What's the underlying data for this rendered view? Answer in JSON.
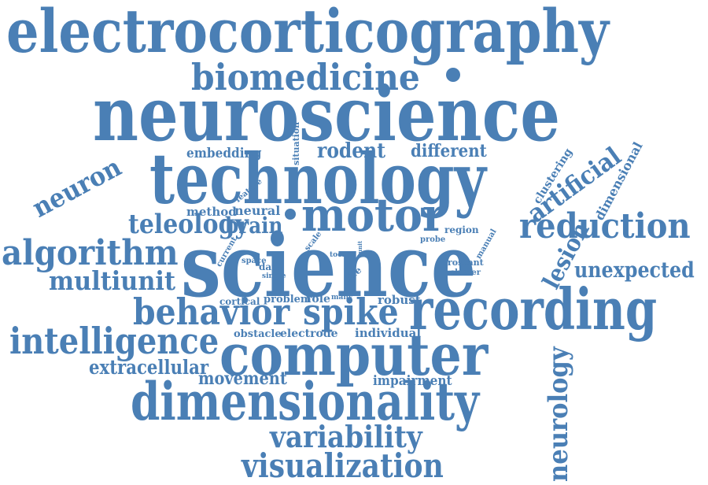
{
  "colors": {
    "word": "#4A7FB5",
    "background": "#FFFFFF"
  },
  "words": [
    "electrocorticography",
    "biomedicine",
    "neuroscience",
    "technology",
    "motor",
    "science",
    "recording",
    "computer",
    "dimensionality",
    "behavior",
    "spike",
    "intelligence",
    "algorithm",
    "multiunit",
    "teleology",
    "neuron",
    "brain",
    "reduction",
    "artificial",
    "lesion",
    "unexpected",
    "rodent",
    "different",
    "embedding",
    "method",
    "neural",
    "extracellular",
    "movement",
    "impairment",
    "variability",
    "visualization",
    "neurology",
    "dimensional",
    "clustering",
    "cortical",
    "problem",
    "role",
    "many",
    "robust",
    "obstacle",
    "electrode",
    "individual",
    "space",
    "data",
    "single",
    "tool",
    "unit",
    "life",
    "rossant",
    "cluster",
    "probe",
    "region",
    "manual",
    "current",
    "scale",
    "feature",
    "situation"
  ]
}
